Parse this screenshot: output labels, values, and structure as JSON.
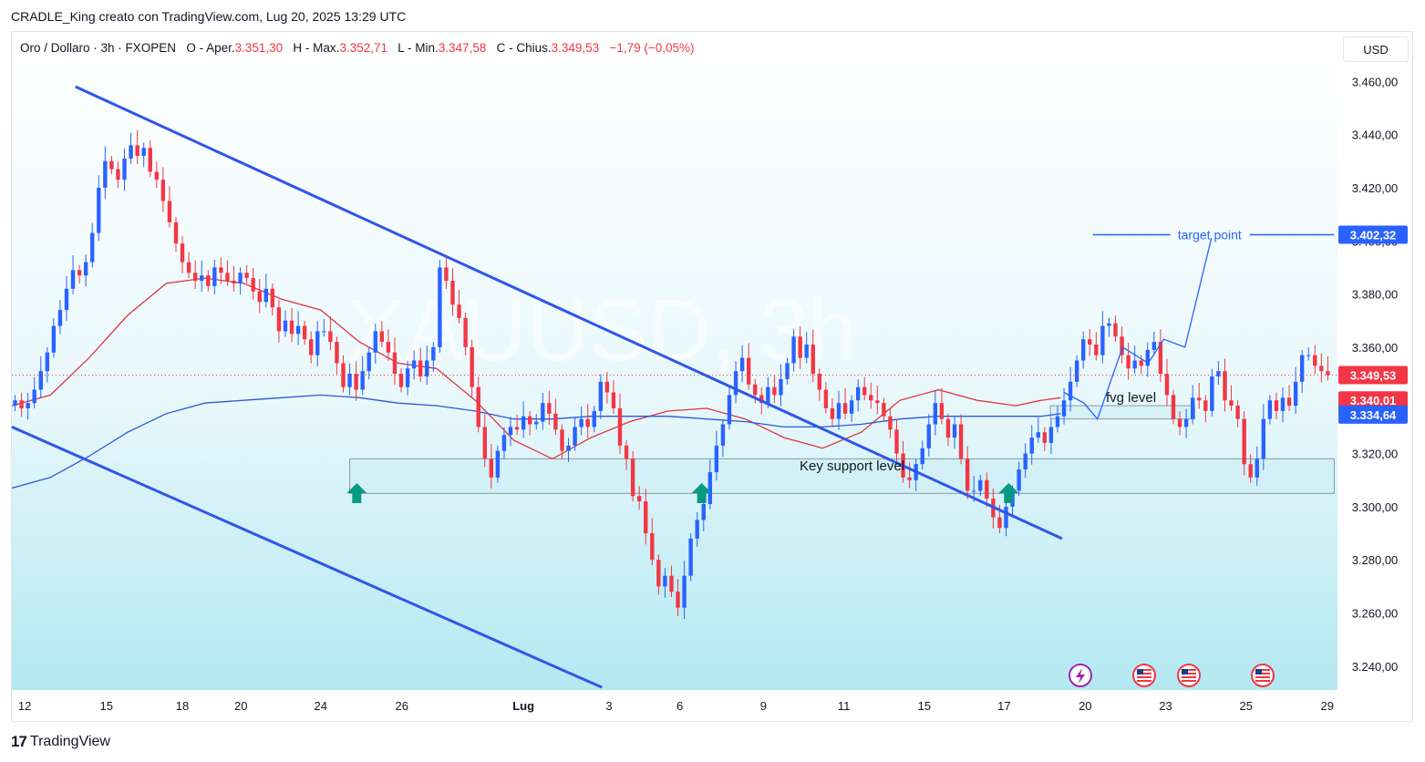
{
  "header": {
    "author_line": "CRADLE_King creato con TradingView.com, Lug 20, 2025 13:29 UTC"
  },
  "legend": {
    "symbol": "Oro / Dollaro · 3h · FXOPEN",
    "open_label": "O - Aper.",
    "open_value": "3.351,30",
    "high_label": "H - Max.",
    "high_value": "3.352,71",
    "low_label": "L - Min.",
    "low_value": "3.347,58",
    "close_label": "C - Chius.",
    "close_value": "3.349,53",
    "change": "−1,79 (−0,05%)"
  },
  "currency_button": "USD",
  "brand": {
    "logo": "17",
    "name": "TradingView"
  },
  "colors": {
    "up": "#2962ff",
    "down": "#f23645",
    "trendline": "#3056e8",
    "ma_fast": "#e0353f",
    "ma_slow": "#2b57d9",
    "zone_fill": "#cfeff4",
    "arrow": "#089981",
    "bg_gradient_bottom": "#b3e8f2"
  },
  "icons": [
    "lightning-event-icon",
    "us-flag-icon",
    "us-flag-icon",
    "us-flag-icon"
  ],
  "chart_data": {
    "type": "candlestick",
    "watermark": "XAUUSD, 3h",
    "ylim": [
      3230,
      3468
    ],
    "y_ticks": [
      3240,
      3260,
      3280,
      3300,
      3320,
      3340,
      3360,
      3380,
      3400,
      3420,
      3440,
      3460
    ],
    "y_tick_labels": [
      "3.240,00",
      "3.260,00",
      "3.280,00",
      "3.300,00",
      "3.320,00",
      "3.340,00",
      "3.360,00",
      "3.380,00",
      "3.400,00",
      "3.420,00",
      "3.440,00",
      "3.460,00"
    ],
    "x_labels": [
      {
        "t": 2.0,
        "label": "12"
      },
      {
        "t": 14.7,
        "label": "15"
      },
      {
        "t": 26.5,
        "label": "18"
      },
      {
        "t": 35.6,
        "label": "20"
      },
      {
        "t": 48.0,
        "label": "24"
      },
      {
        "t": 60.6,
        "label": "26"
      },
      {
        "t": 79.5,
        "label": "Lug"
      },
      {
        "t": 92.8,
        "label": "3"
      },
      {
        "t": 103.8,
        "label": "6"
      },
      {
        "t": 116.8,
        "label": "9"
      },
      {
        "t": 129.3,
        "label": "11"
      },
      {
        "t": 141.8,
        "label": "15"
      },
      {
        "t": 154.2,
        "label": "17"
      },
      {
        "t": 166.8,
        "label": "20"
      },
      {
        "t": 179.3,
        "label": "23"
      },
      {
        "t": 191.8,
        "label": "25"
      },
      {
        "t": 204.4,
        "label": "29"
      }
    ],
    "closes": [
      3340,
      3337,
      3339,
      3344,
      3351,
      3358,
      3368,
      3374,
      3382,
      3389,
      3387,
      3392,
      3403,
      3420,
      3430,
      3427,
      3423,
      3431,
      3436,
      3432,
      3435,
      3426,
      3423,
      3415,
      3407,
      3399,
      3392,
      3388,
      3385,
      3387,
      3383,
      3390,
      3388,
      3385,
      3384,
      3388,
      3386,
      3381,
      3377,
      3382,
      3375,
      3366,
      3370,
      3365,
      3368,
      3363,
      3357,
      3366,
      3366,
      3362,
      3354,
      3345,
      3350,
      3344,
      3351,
      3358,
      3366,
      3362,
      3358,
      3350,
      3345,
      3352,
      3355,
      3349,
      3355,
      3360,
      3390,
      3385,
      3376,
      3371,
      3360,
      3345,
      3330,
      3318,
      3311,
      3321,
      3327,
      3330,
      3329,
      3334,
      3331,
      3332,
      3339,
      3335,
      3329,
      3321,
      3323,
      3330,
      3333,
      3330,
      3336,
      3347,
      3343,
      3337,
      3323,
      3318,
      3304,
      3302,
      3290,
      3280,
      3270,
      3274,
      3268,
      3262,
      3274,
      3288,
      3295,
      3301,
      3313,
      3323,
      3331,
      3342,
      3351,
      3356,
      3346,
      3342,
      3339,
      3345,
      3342,
      3348,
      3354,
      3364,
      3356,
      3361,
      3350,
      3344,
      3337,
      3333,
      3339,
      3335,
      3340,
      3345,
      3342,
      3340,
      3339,
      3334,
      3329,
      3320,
      3311,
      3310,
      3316,
      3322,
      3331,
      3339,
      3333,
      3326,
      3331,
      3318,
      3306,
      3306,
      3310,
      3303,
      3296,
      3292,
      3300,
      3306,
      3314,
      3320,
      3326,
      3328,
      3324,
      3330,
      3334,
      3340,
      3347,
      3355,
      3363,
      3361,
      3357,
      3368,
      3369,
      3364,
      3357,
      3352,
      3355,
      3353,
      3359,
      3362,
      3350,
      3342,
      3333,
      3330,
      3333,
      3341,
      3340,
      3336,
      3349,
      3351,
      3340,
      3338,
      3333,
      3316,
      3311,
      3318,
      3333,
      3340,
      3336,
      3341,
      3338,
      3347,
      3357,
      3357,
      3353,
      3351,
      3349.53
    ],
    "series": [
      {
        "name": "",
        "type": "ma_fast",
        "color": "#e0353f",
        "points": [
          [
            0,
            3338
          ],
          [
            6,
            3342
          ],
          [
            12,
            3356
          ],
          [
            18,
            3372
          ],
          [
            24,
            3384
          ],
          [
            30,
            3386
          ],
          [
            36,
            3384
          ],
          [
            42,
            3378
          ],
          [
            48,
            3374
          ],
          [
            54,
            3362
          ],
          [
            60,
            3354
          ],
          [
            66,
            3352
          ],
          [
            72,
            3340
          ],
          [
            78,
            3325
          ],
          [
            84,
            3318
          ],
          [
            90,
            3326
          ],
          [
            96,
            3332
          ],
          [
            102,
            3336
          ],
          [
            108,
            3337
          ],
          [
            114,
            3333
          ],
          [
            120,
            3326
          ],
          [
            126,
            3322
          ],
          [
            132,
            3328
          ],
          [
            138,
            3340
          ],
          [
            144,
            3344
          ],
          [
            150,
            3340
          ],
          [
            156,
            3338
          ],
          [
            160,
            3340
          ],
          [
            163,
            3341
          ]
        ]
      },
      {
        "name": "",
        "type": "ma_slow",
        "color": "#2b57d9",
        "points": [
          [
            0,
            3307
          ],
          [
            6,
            3311
          ],
          [
            12,
            3319
          ],
          [
            18,
            3328
          ],
          [
            24,
            3335
          ],
          [
            30,
            3339
          ],
          [
            36,
            3340
          ],
          [
            42,
            3341
          ],
          [
            48,
            3342
          ],
          [
            54,
            3341
          ],
          [
            60,
            3339
          ],
          [
            66,
            3338
          ],
          [
            72,
            3336
          ],
          [
            78,
            3333
          ],
          [
            84,
            3333
          ],
          [
            90,
            3334
          ],
          [
            96,
            3334
          ],
          [
            102,
            3334
          ],
          [
            108,
            3333
          ],
          [
            114,
            3332
          ],
          [
            120,
            3330
          ],
          [
            126,
            3330
          ],
          [
            132,
            3331
          ],
          [
            138,
            3333
          ],
          [
            144,
            3334
          ],
          [
            150,
            3334
          ],
          [
            156,
            3334
          ],
          [
            160,
            3334
          ],
          [
            163,
            3335
          ]
        ]
      }
    ],
    "trendlines": [
      {
        "from": [
          9.9,
          3458
        ],
        "to": [
          163.2,
          3288
        ]
      },
      {
        "from": [
          0,
          3330
        ],
        "to": [
          91.7,
          3232
        ]
      }
    ],
    "zones": [
      {
        "label": "Key support level",
        "from_t": 52.5,
        "to_t": 205.5,
        "y_low": 3305,
        "y_high": 3318
      },
      {
        "label": "fvg level",
        "from_t": 161.4,
        "to_t": 183.8,
        "y_low": 3333,
        "y_high": 3338
      }
    ],
    "projection": [
      [
        163.5,
        3343
      ],
      [
        166.6,
        3339
      ],
      [
        168.7,
        3333
      ],
      [
        172.6,
        3360
      ],
      [
        176.6,
        3354
      ],
      [
        179.0,
        3363
      ],
      [
        182.3,
        3360
      ],
      [
        186.4,
        3401
      ]
    ],
    "target": {
      "label": "target point",
      "value": 3402.32,
      "from_t": 168.0,
      "to_t": 205.5
    },
    "markers_up": [
      53.6,
      107.2,
      154.9
    ],
    "price_tags": [
      {
        "value": 3402.32,
        "label": "3.402,32",
        "color": "#2962ff"
      },
      {
        "value": 3349.53,
        "label": "3.349,53",
        "color": "#f23645"
      },
      {
        "value": 3340.01,
        "label": "3.340,01",
        "color": "#f23645"
      },
      {
        "value": 3334.64,
        "label": "3.334,64",
        "color": "#2962ff"
      }
    ],
    "last_price": 3349.53
  }
}
